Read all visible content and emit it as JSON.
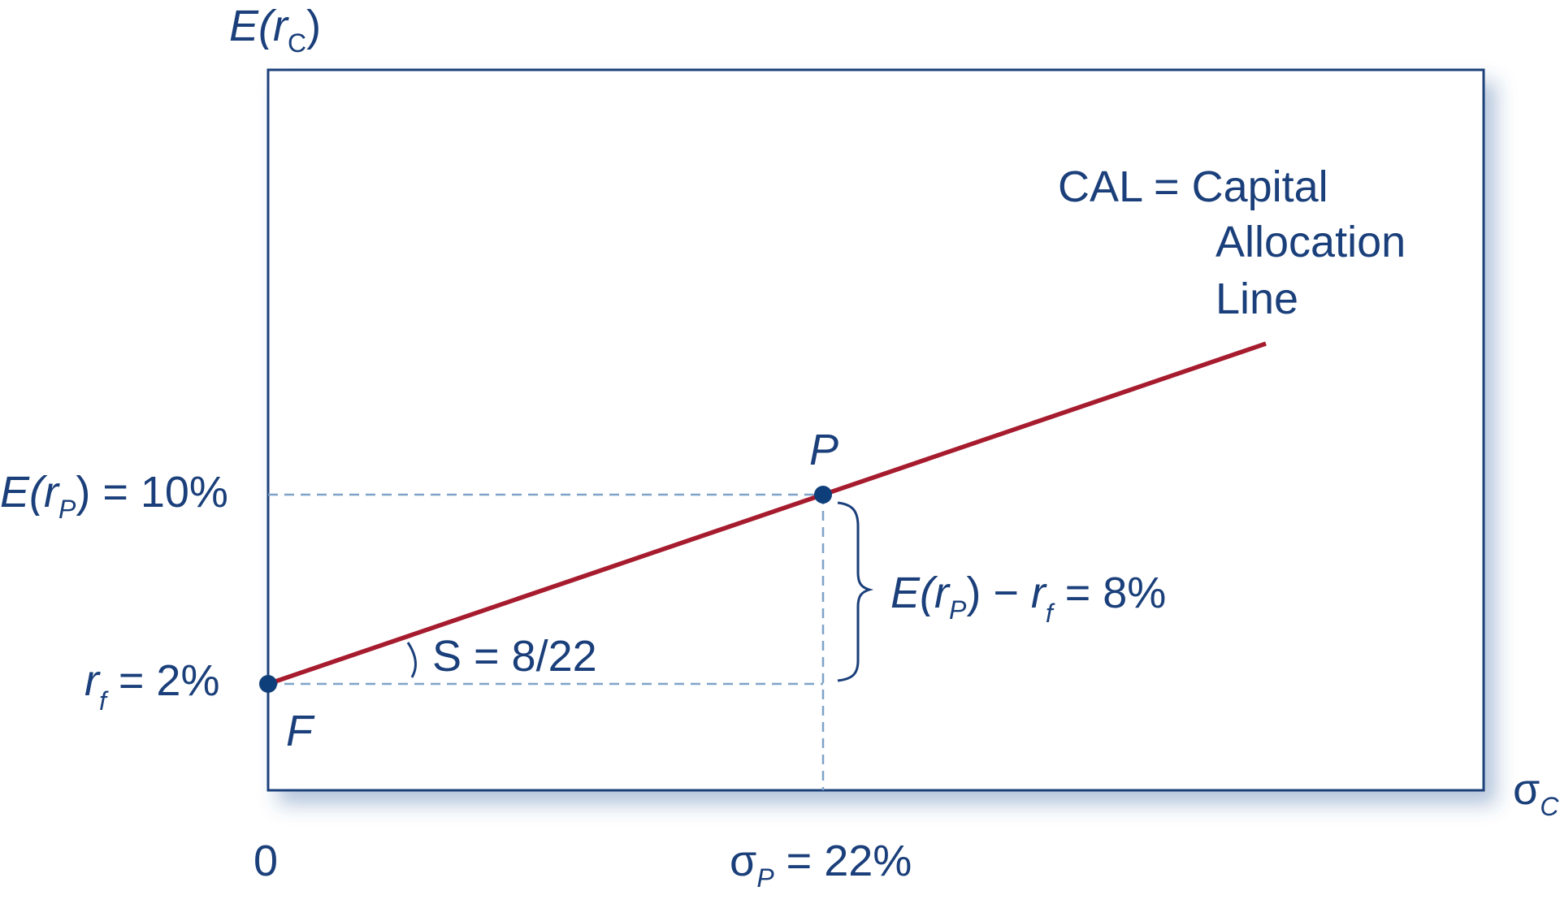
{
  "chart_data": {
    "type": "line",
    "xlabel": {
      "main": "σ",
      "sub": "C"
    },
    "ylabel": {
      "pre": "E(",
      "r": "r",
      "sub": "C",
      "post": ")"
    },
    "origin_label": "0",
    "colors": {
      "axis": "#1a3f7a",
      "line": "#a61c2e",
      "guide": "#7fa3c8",
      "text": "#1a3f7a"
    },
    "series": [
      {
        "name": "CAL = Capital Allocation Line",
        "points": [
          {
            "x": 0,
            "y": 2
          },
          {
            "x": 22,
            "y": 10
          }
        ]
      }
    ],
    "points": [
      {
        "label": "F",
        "x": 0,
        "y": 2
      },
      {
        "label": "P",
        "x": 22,
        "y": 10
      }
    ],
    "y_tick_labels": {
      "erp": {
        "pre": "E(",
        "r": "r",
        "sub": "P",
        "post": ") = 10%"
      },
      "rf": {
        "r": "r",
        "sub": "f",
        "post": " = 2%"
      }
    },
    "x_tick_labels": {
      "sigma_p": {
        "sigma": "σ",
        "sub": "P",
        "post": " = 22%"
      }
    },
    "annotations": {
      "cal_lines": [
        "CAL = Capital",
        "Allocation",
        "Line"
      ],
      "slope": "S = 8/22",
      "premium": {
        "pre": "E(",
        "r1": "r",
        "sub1": "P",
        "mid": ") − ",
        "r2": "r",
        "sub2": "f",
        "post": " = 8%"
      }
    }
  }
}
